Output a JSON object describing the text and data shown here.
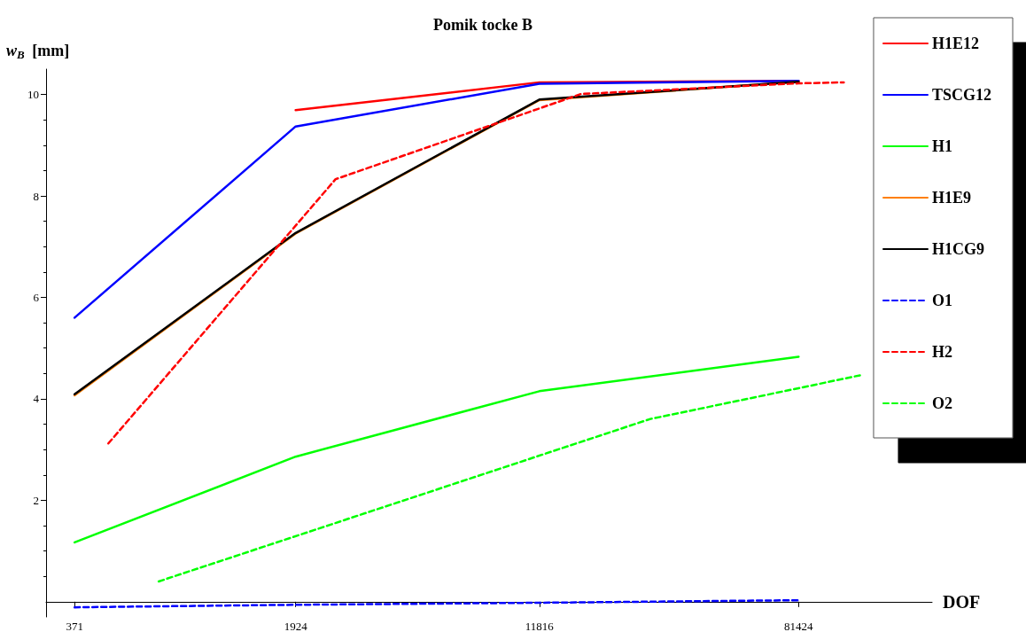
{
  "chart_data": {
    "type": "line",
    "title": "Pomik tocke B",
    "xlabel": "DOF",
    "ylabel": "w$_{B}$ [mm]",
    "log": "x",
    "xlim": [
      300,
      220000
    ],
    "xticks": [
      371,
      1924,
      11816,
      81424
    ],
    "ylim": [
      -0.3,
      10.5
    ],
    "yticks": [
      2,
      4,
      6,
      8,
      10
    ],
    "grid": false,
    "legend": "right",
    "marker": "none",
    "series": [
      {
        "name": "H1E12",
        "color": "#ff0000",
        "line_style": "solid",
        "x": [
          1924,
          11816,
          81424
        ],
        "values": [
          9.69,
          10.24,
          10.27
        ]
      },
      {
        "name": "TSCG12",
        "color": "#0000ff",
        "line_style": "solid",
        "x": [
          371,
          1924,
          11816,
          81424
        ],
        "values": [
          5.6,
          9.37,
          10.21,
          10.27
        ]
      },
      {
        "name": "H1",
        "color": "#00ff00",
        "line_style": "solid",
        "x": [
          371,
          1924,
          11816,
          81424
        ],
        "values": [
          1.17,
          2.86,
          4.15,
          4.83
        ]
      },
      {
        "name": "H1E9",
        "color": "#ff7f00",
        "line_style": "solid",
        "x": [
          371,
          1924,
          11816,
          81424
        ],
        "values": [
          4.07,
          7.26,
          9.89,
          10.25
        ]
      },
      {
        "name": "H1CG9",
        "color": "#000000",
        "line_style": "solid",
        "x": [
          371,
          1924,
          11816,
          81424
        ],
        "values": [
          4.09,
          7.27,
          9.9,
          10.25
        ]
      },
      {
        "name": "O1",
        "color": "#0000ff",
        "line_style": "dashed",
        "x": [
          371,
          1924,
          11816,
          81424
        ],
        "values": [
          -0.11,
          -0.06,
          -0.02,
          0.03
        ]
      },
      {
        "name": "H2",
        "color": "#ff0000",
        "line_style": "dashed",
        "x": [
          477,
          2590,
          16100,
          81424,
          114000
        ],
        "values": [
          3.12,
          8.33,
          10.01,
          10.22,
          10.24
        ]
      },
      {
        "name": "O2",
        "color": "#00ff00",
        "line_style": "dashed",
        "x": [
          694,
          26900,
          81424,
          130000
        ],
        "values": [
          0.4,
          3.6,
          4.21,
          4.47
        ]
      }
    ]
  }
}
